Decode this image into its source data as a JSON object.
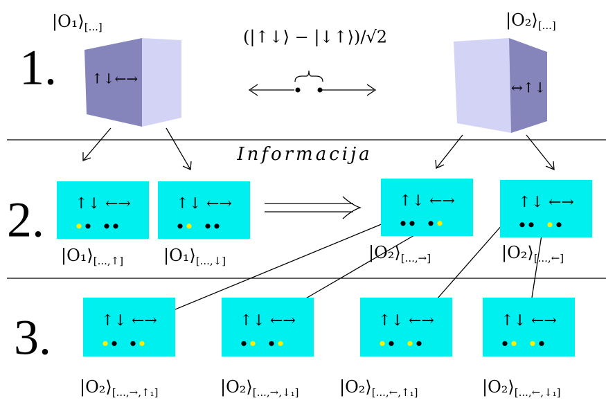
{
  "row1": {
    "number": "1.",
    "left": {
      "label": {
        "ket": "|O₁⟩",
        "sub": "[...]"
      },
      "spins": "↑↓←→"
    },
    "right": {
      "label": {
        "ket": "|O₂⟩",
        "sub": "[...]"
      },
      "spins": "↔↑↓"
    },
    "state": "(|↑↓⟩ − |↓↑⟩)/√2"
  },
  "information": "Informacija",
  "row2": {
    "number": "2.",
    "boxes": [
      {
        "spins": "↑↓ ←→",
        "label": {
          "ket": "|O₁⟩",
          "sub": "[...,↑]"
        }
      },
      {
        "spins": "↑↓ ←→",
        "label": {
          "ket": "|O₁⟩",
          "sub": "[...,↓]"
        }
      },
      {
        "spins": "↑↓ ←→",
        "label": {
          "ket": "|O₂⟩",
          "sub": "[...,→]"
        }
      },
      {
        "spins": "↑↓ ←→",
        "label": {
          "ket": "|O₂⟩",
          "sub": "[...,←]"
        }
      }
    ]
  },
  "row3": {
    "number": "3.",
    "boxes": [
      {
        "spins": "↑↓ ←→",
        "label": {
          "ket": "|O₂⟩",
          "sub": "[...,→,↑₁]"
        }
      },
      {
        "spins": "↑↓ ←→",
        "label": {
          "ket": "|O₂⟩",
          "sub": "[...,→,↓₁]"
        }
      },
      {
        "spins": "↑↓ ←→",
        "label": {
          "ket": "|O₂⟩",
          "sub": "[...,←,↑₁]"
        }
      },
      {
        "spins": "↑↓ ←→",
        "label": {
          "ket": "|O₂⟩",
          "sub": "[...,←,↓₁]"
        }
      }
    ]
  }
}
